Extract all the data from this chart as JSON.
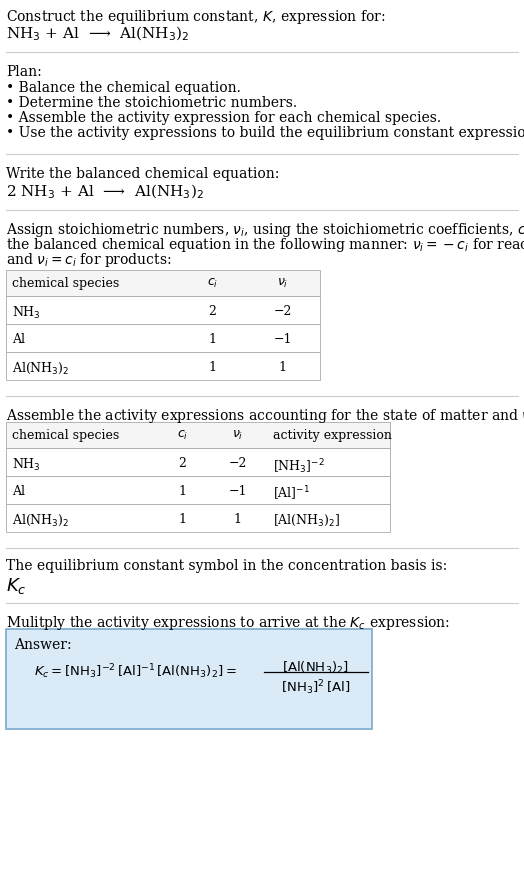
{
  "title_line1": "Construct the equilibrium constant, $K$, expression for:",
  "title_line2": "NH$_3$ + Al  ⟶  Al(NH$_3$)$_2$",
  "plan_header": "Plan:",
  "plan_bullets": [
    "• Balance the chemical equation.",
    "• Determine the stoichiometric numbers.",
    "• Assemble the activity expression for each chemical species.",
    "• Use the activity expressions to build the equilibrium constant expression."
  ],
  "balanced_eq_header": "Write the balanced chemical equation:",
  "balanced_eq": "2 NH$_3$ + Al  ⟶  Al(NH$_3$)$_2$",
  "stoich_intro_lines": [
    "Assign stoichiometric numbers, $\\nu_i$, using the stoichiometric coefficients, $c_i$, from",
    "the balanced chemical equation in the following manner: $\\nu_i = -c_i$ for reactants",
    "and $\\nu_i = c_i$ for products:"
  ],
  "table1_headers": [
    "chemical species",
    "$c_i$",
    "$\\nu_i$"
  ],
  "table1_rows": [
    [
      "NH$_3$",
      "2",
      "−2"
    ],
    [
      "Al",
      "1",
      "−1"
    ],
    [
      "Al(NH$_3$)$_2$",
      "1",
      "1"
    ]
  ],
  "activity_intro": "Assemble the activity expressions accounting for the state of matter and $\\nu_i$:",
  "table2_headers": [
    "chemical species",
    "$c_i$",
    "$\\nu_i$",
    "activity expression"
  ],
  "table2_rows": [
    [
      "NH$_3$",
      "2",
      "−2",
      "[NH$_3$]$^{-2}$"
    ],
    [
      "Al",
      "1",
      "−1",
      "[Al]$^{-1}$"
    ],
    [
      "Al(NH$_3$)$_2$",
      "1",
      "1",
      "[Al(NH$_3$)$_2$]"
    ]
  ],
  "kc_intro": "The equilibrium constant symbol in the concentration basis is:",
  "kc_symbol": "$K_c$",
  "multiply_intro": "Mulitply the activity expressions to arrive at the $K_c$ expression:",
  "answer_label": "Answer:",
  "answer_box_color": "#daeaf7",
  "answer_box_border": "#7aaacc",
  "bg_color": "#ffffff",
  "text_color": "#000000",
  "separator_color": "#cccccc",
  "table_border_color": "#aaaaaa",
  "font_size": 10,
  "font_family": "DejaVu Serif"
}
